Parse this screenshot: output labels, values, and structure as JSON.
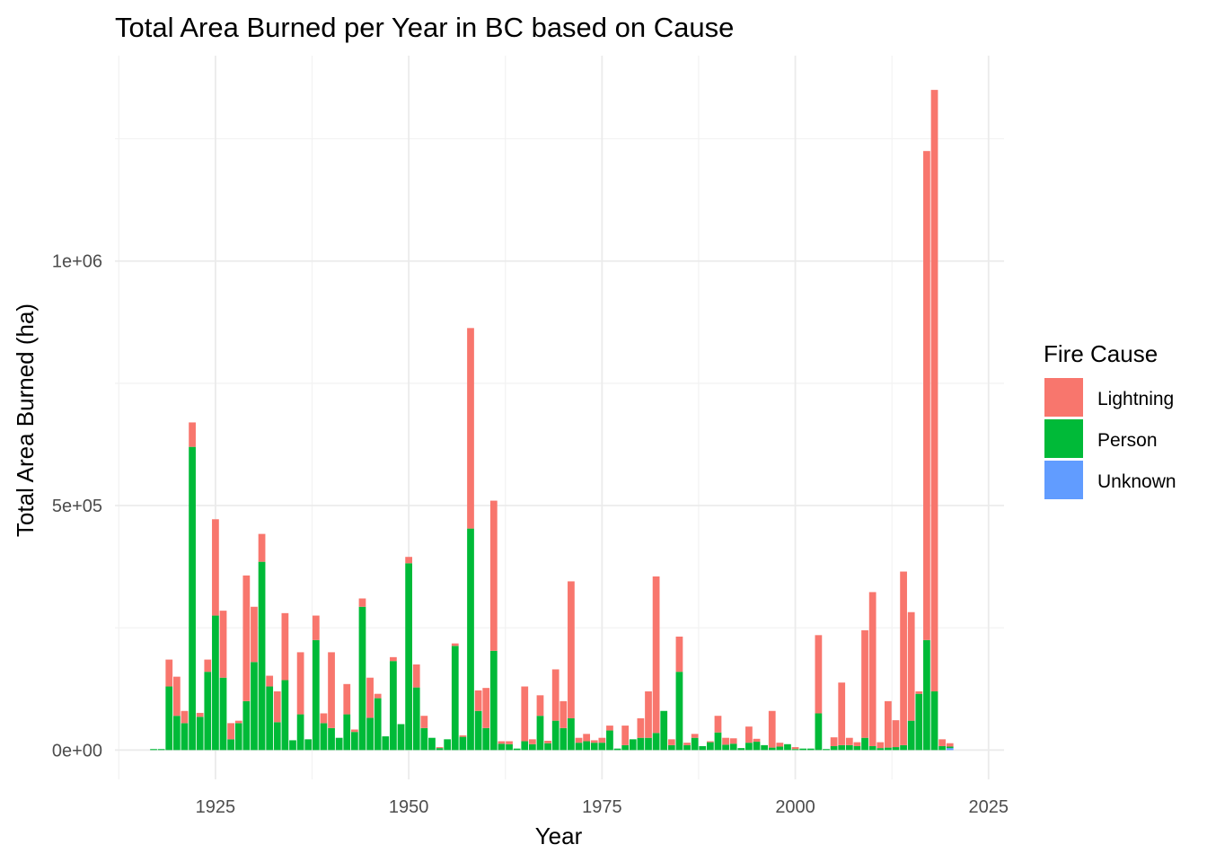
{
  "chart_data": {
    "type": "bar",
    "stacked": true,
    "title": "Total Area Burned per Year in BC based on Cause",
    "xlabel": "Year",
    "ylabel": "Total Area Burned (ha)",
    "xlim": [
      1912,
      2027
    ],
    "ylim": [
      -60000,
      1420000
    ],
    "x_ticks": [
      1925,
      1950,
      1975,
      2000,
      2025
    ],
    "x_tick_labels": [
      "1925",
      "1950",
      "1975",
      "2000",
      "2025"
    ],
    "y_ticks": [
      0,
      500000,
      1000000
    ],
    "y_tick_labels": [
      "0e+00",
      "5e+05",
      "1e+06"
    ],
    "grid": true,
    "legend": {
      "title": "Fire Cause",
      "placement": "right",
      "entries": [
        {
          "name": "Lightning",
          "color": "#F8766D"
        },
        {
          "name": "Person",
          "color": "#00BA38"
        },
        {
          "name": "Unknown",
          "color": "#619CFF"
        }
      ]
    },
    "years": [
      1917,
      1918,
      1919,
      1920,
      1921,
      1922,
      1923,
      1924,
      1925,
      1926,
      1927,
      1928,
      1929,
      1930,
      1931,
      1932,
      1933,
      1934,
      1935,
      1936,
      1937,
      1938,
      1939,
      1940,
      1941,
      1942,
      1943,
      1944,
      1945,
      1946,
      1947,
      1948,
      1949,
      1950,
      1951,
      1952,
      1953,
      1954,
      1955,
      1956,
      1957,
      1958,
      1959,
      1960,
      1961,
      1962,
      1963,
      1964,
      1965,
      1966,
      1967,
      1968,
      1969,
      1970,
      1971,
      1972,
      1973,
      1974,
      1975,
      1976,
      1977,
      1978,
      1979,
      1980,
      1981,
      1982,
      1983,
      1984,
      1985,
      1986,
      1987,
      1988,
      1989,
      1990,
      1991,
      1992,
      1993,
      1994,
      1995,
      1996,
      1997,
      1998,
      1999,
      2000,
      2001,
      2002,
      2003,
      2004,
      2005,
      2006,
      2007,
      2008,
      2009,
      2010,
      2011,
      2012,
      2013,
      2014,
      2015,
      2016,
      2017,
      2018,
      2019,
      2020
    ],
    "series": [
      {
        "name": "Person",
        "color": "#00BA38",
        "values": [
          2000,
          2000,
          130000,
          70000,
          55000,
          620000,
          68000,
          160000,
          275000,
          148000,
          22000,
          55000,
          100000,
          180000,
          385000,
          130000,
          57000,
          143000,
          20000,
          73000,
          22000,
          225000,
          55000,
          45000,
          25000,
          73000,
          37000,
          293000,
          66000,
          106000,
          28000,
          182000,
          53000,
          382000,
          128000,
          45000,
          25000,
          4000,
          22000,
          213000,
          27000,
          453000,
          80000,
          45000,
          203000,
          13000,
          12000,
          3000,
          18000,
          12000,
          70000,
          14000,
          60000,
          45000,
          65000,
          15000,
          18000,
          15000,
          15000,
          40000,
          3000,
          10000,
          22000,
          25000,
          25000,
          35000,
          80000,
          10000,
          160000,
          10000,
          25000,
          8000,
          16000,
          36000,
          11000,
          13000,
          4000,
          15000,
          17000,
          10000,
          5000,
          7000,
          12000,
          2000,
          3000,
          3000,
          75000,
          2000,
          8000,
          10000,
          10000,
          8000,
          25000,
          8000,
          4000,
          5000,
          6000,
          10000,
          60000,
          115000,
          225000,
          120000,
          8000,
          3000
        ]
      },
      {
        "name": "Lightning",
        "color": "#F8766D",
        "values": [
          0,
          0,
          55000,
          80000,
          25000,
          50000,
          8000,
          25000,
          197000,
          137000,
          33000,
          5000,
          257000,
          113000,
          57000,
          22000,
          63000,
          137000,
          0,
          127000,
          0,
          50000,
          20000,
          155000,
          0,
          62000,
          5000,
          17000,
          82000,
          9000,
          0,
          8000,
          0,
          13000,
          47000,
          25000,
          0,
          2000,
          0,
          5000,
          3000,
          410000,
          42000,
          82000,
          307000,
          5000,
          6000,
          0,
          112000,
          10000,
          42000,
          5000,
          105000,
          55000,
          280000,
          10000,
          15000,
          5000,
          10000,
          10000,
          0,
          40000,
          0,
          40000,
          95000,
          320000,
          0,
          12000,
          72000,
          5000,
          8000,
          0,
          2000,
          34000,
          14000,
          11000,
          0,
          33000,
          6000,
          0,
          75000,
          8000,
          0,
          4000,
          0,
          0,
          160000,
          0,
          18000,
          128000,
          15000,
          8000,
          220000,
          315000,
          12000,
          95000,
          55000,
          355000,
          222000,
          5000,
          1000000,
          1230000,
          14000,
          7000
        ]
      },
      {
        "name": "Unknown",
        "color": "#619CFF",
        "values": [
          0,
          0,
          0,
          0,
          0,
          0,
          0,
          0,
          0,
          0,
          0,
          0,
          0,
          0,
          0,
          0,
          0,
          0,
          0,
          0,
          0,
          0,
          0,
          0,
          0,
          0,
          0,
          0,
          0,
          0,
          0,
          0,
          0,
          0,
          0,
          0,
          0,
          0,
          0,
          0,
          0,
          0,
          0,
          0,
          0,
          0,
          0,
          0,
          0,
          0,
          0,
          0,
          0,
          0,
          0,
          0,
          0,
          0,
          0,
          0,
          0,
          0,
          0,
          0,
          0,
          0,
          0,
          0,
          0,
          0,
          0,
          0,
          0,
          0,
          0,
          0,
          0,
          0,
          0,
          0,
          0,
          0,
          0,
          0,
          0,
          0,
          0,
          0,
          0,
          0,
          0,
          0,
          0,
          0,
          0,
          0,
          0,
          0,
          0,
          0,
          0,
          0,
          0,
          4000
        ]
      }
    ]
  }
}
